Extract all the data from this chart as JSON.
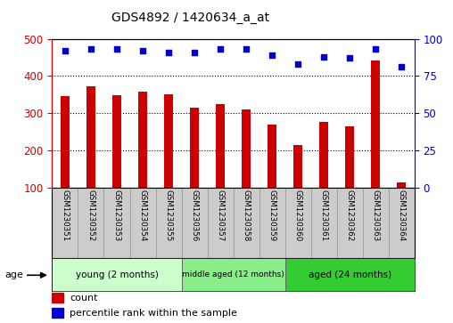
{
  "title": "GDS4892 / 1420634_a_at",
  "samples": [
    "GSM1230351",
    "GSM1230352",
    "GSM1230353",
    "GSM1230354",
    "GSM1230355",
    "GSM1230356",
    "GSM1230357",
    "GSM1230358",
    "GSM1230359",
    "GSM1230360",
    "GSM1230361",
    "GSM1230362",
    "GSM1230363",
    "GSM1230364"
  ],
  "counts": [
    345,
    372,
    347,
    357,
    351,
    314,
    325,
    310,
    268,
    215,
    276,
    265,
    442,
    113
  ],
  "percentiles": [
    92,
    93,
    93,
    92,
    91,
    91,
    93,
    93,
    89,
    83,
    88,
    87,
    93,
    81
  ],
  "groups": [
    {
      "label": "young (2 months)",
      "start": 0,
      "end": 5,
      "color": "#ccffcc"
    },
    {
      "label": "middle aged (12 months)",
      "start": 5,
      "end": 9,
      "color": "#88ee88"
    },
    {
      "label": "aged (24 months)",
      "start": 9,
      "end": 14,
      "color": "#33cc33"
    }
  ],
  "ylim_left": [
    100,
    500
  ],
  "ylim_right": [
    0,
    100
  ],
  "bar_color": "#cc0000",
  "dot_color": "#0000cc",
  "left_axis_color": "#cc0000",
  "right_axis_color": "#0000cc",
  "bg_color": "#cccccc",
  "plot_bg": "#ffffff",
  "grid_yticks": [
    200,
    300,
    400
  ],
  "left_yticks": [
    100,
    200,
    300,
    400,
    500
  ],
  "right_yticks": [
    0,
    25,
    50,
    75,
    100
  ]
}
